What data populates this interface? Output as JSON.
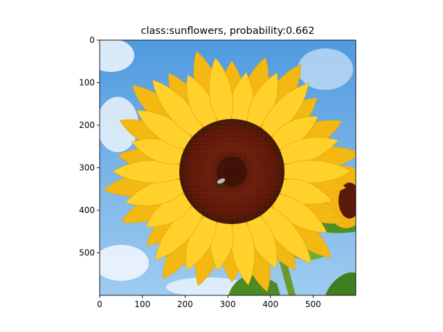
{
  "chart_data": {
    "type": "image",
    "title": "class:sunflowers, probability:0.662",
    "xlim": [
      0,
      600
    ],
    "ylim": [
      600,
      0
    ],
    "xticks": [
      0,
      100,
      200,
      300,
      400,
      500
    ],
    "yticks": [
      0,
      100,
      200,
      300,
      400,
      500
    ],
    "grid": false,
    "subject": "sunflower",
    "colors": {
      "sky": "#7fb6e8",
      "petal": "#f7c21a",
      "disk": "#5a1a0c",
      "leaf": "#5a9a2a"
    }
  }
}
